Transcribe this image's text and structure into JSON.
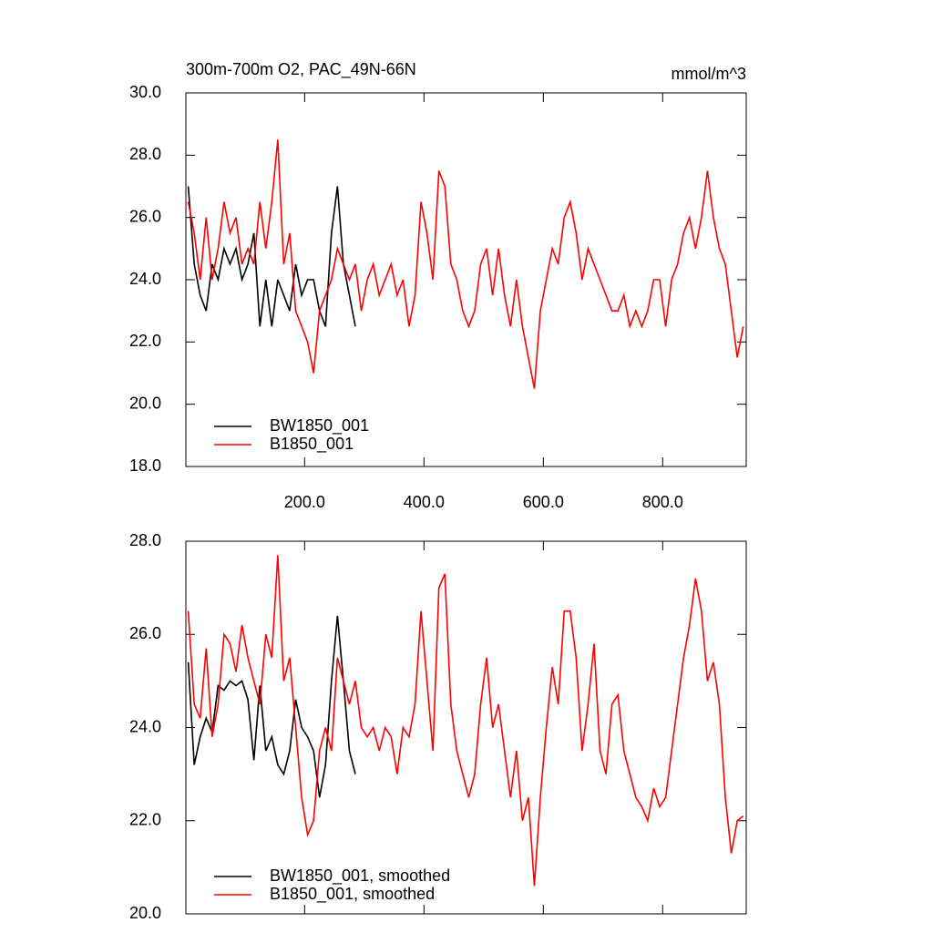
{
  "chart_data": [
    {
      "type": "line",
      "title": "300m-700m O2, PAC_49N-66N",
      "subtitle": "mmol/m^3",
      "x": [
        5,
        15,
        25,
        35,
        45,
        55,
        65,
        75,
        85,
        95,
        105,
        115,
        125,
        135,
        145,
        155,
        165,
        175,
        185,
        195,
        205,
        215,
        225,
        235,
        245,
        255,
        265,
        275,
        285,
        295,
        305,
        315,
        325,
        335,
        345,
        355,
        365,
        375,
        385,
        395,
        405,
        415,
        425,
        435,
        445,
        455,
        465,
        475,
        485,
        495,
        505,
        515,
        525,
        535,
        545,
        555,
        565,
        575,
        585,
        595,
        605,
        615,
        625,
        635,
        645,
        655,
        665,
        675,
        685,
        695,
        705,
        715,
        725,
        735,
        745,
        755,
        765,
        775,
        785,
        795,
        805,
        815,
        825,
        835,
        845,
        855,
        865,
        875,
        885,
        895,
        905,
        915,
        925,
        935
      ],
      "series": [
        {
          "name": "BW1850_001",
          "color": "#000000",
          "values": [
            27,
            24.5,
            23.5,
            23,
            24.5,
            24,
            25,
            24.5,
            25,
            24,
            24.5,
            25.5,
            22.5,
            24,
            22.5,
            24,
            23.5,
            23,
            24.5,
            23.5,
            24,
            24,
            23,
            22.5,
            25.5,
            27,
            24.5,
            23.5,
            22.5,
            null,
            null,
            null,
            null,
            null,
            null,
            null,
            null,
            null,
            null,
            null,
            null,
            null,
            null,
            null,
            null,
            null,
            null,
            null,
            null,
            null,
            null,
            null,
            null,
            null,
            null,
            null,
            null,
            null,
            null,
            null,
            null,
            null,
            null,
            null,
            null,
            null,
            null,
            null,
            null,
            null,
            null,
            null,
            null,
            null,
            null,
            null,
            null,
            null,
            null,
            null,
            null,
            null,
            null,
            null,
            null,
            null,
            null,
            null,
            null,
            null,
            null,
            null,
            null,
            null
          ]
        },
        {
          "name": "B1850_001",
          "color": "#ff0000",
          "values": [
            26.5,
            25.5,
            24,
            26,
            24,
            25,
            26.5,
            25.5,
            26,
            24.5,
            25,
            24.5,
            26.5,
            25,
            26.5,
            28.5,
            24.5,
            25.5,
            23,
            22.5,
            22,
            21,
            23,
            23.5,
            24,
            25,
            24.5,
            24,
            24.5,
            23,
            24,
            24.5,
            23.5,
            24,
            24.5,
            23.5,
            24,
            22.5,
            23.5,
            26.5,
            25.5,
            24,
            27.5,
            27,
            24.5,
            24,
            23,
            22.5,
            23,
            24.5,
            25,
            23.5,
            25,
            23.5,
            22.5,
            24,
            22.5,
            21.5,
            20.5,
            23,
            24,
            25,
            24.5,
            26,
            26.5,
            25.5,
            24,
            25,
            24.5,
            24,
            23.5,
            23,
            23,
            23.5,
            22.5,
            23,
            22.5,
            23,
            24,
            24,
            22.5,
            24,
            24.5,
            25.5,
            26,
            25,
            26,
            27.5,
            26,
            25,
            24.5,
            23,
            21.5,
            22.5
          ]
        }
      ],
      "xlim": [
        1,
        940
      ],
      "xticks": [
        {
          "value": 200,
          "label": "200.0"
        },
        {
          "value": 400,
          "label": "400.0"
        },
        {
          "value": 600,
          "label": "600.0"
        },
        {
          "value": 800,
          "label": "800.0"
        }
      ],
      "ylim": [
        18,
        30
      ],
      "yticks": [
        {
          "value": 18,
          "label": "18.0"
        },
        {
          "value": 20,
          "label": "20.0"
        },
        {
          "value": 22,
          "label": "22.0"
        },
        {
          "value": 24,
          "label": "24.0"
        },
        {
          "value": 26,
          "label": "26.0"
        },
        {
          "value": 28,
          "label": "28.0"
        },
        {
          "value": 30,
          "label": "30.0"
        }
      ]
    },
    {
      "type": "line",
      "x": [
        5,
        15,
        25,
        35,
        45,
        55,
        65,
        75,
        85,
        95,
        105,
        115,
        125,
        135,
        145,
        155,
        165,
        175,
        185,
        195,
        205,
        215,
        225,
        235,
        245,
        255,
        265,
        275,
        285,
        295,
        305,
        315,
        325,
        335,
        345,
        355,
        365,
        375,
        385,
        395,
        405,
        415,
        425,
        435,
        445,
        455,
        465,
        475,
        485,
        495,
        505,
        515,
        525,
        535,
        545,
        555,
        565,
        575,
        585,
        595,
        605,
        615,
        625,
        635,
        645,
        655,
        665,
        675,
        685,
        695,
        705,
        715,
        725,
        735,
        745,
        755,
        765,
        775,
        785,
        795,
        805,
        815,
        825,
        835,
        845,
        855,
        865,
        875,
        885,
        895,
        905,
        915,
        925,
        935
      ],
      "series": [
        {
          "name": "BW1850_001, smoothed",
          "color": "#000000",
          "values": [
            25.4,
            23.2,
            23.8,
            24.2,
            23.9,
            24.9,
            24.8,
            25,
            24.9,
            25,
            24.6,
            23.3,
            24.9,
            23.5,
            23.8,
            23.2,
            23,
            23.5,
            24.6,
            24,
            23.8,
            23.5,
            22.5,
            23.2,
            25,
            26.4,
            25,
            23.5,
            23,
            null,
            null,
            null,
            null,
            null,
            null,
            null,
            null,
            null,
            null,
            null,
            null,
            null,
            null,
            null,
            null,
            null,
            null,
            null,
            null,
            null,
            null,
            null,
            null,
            null,
            null,
            null,
            null,
            null,
            null,
            null,
            null,
            null,
            null,
            null,
            null,
            null,
            null,
            null,
            null,
            null,
            null,
            null,
            null,
            null,
            null,
            null,
            null,
            null,
            null,
            null,
            null,
            null,
            null,
            null,
            null,
            null,
            null,
            null,
            null,
            null,
            null,
            null,
            null,
            null
          ]
        },
        {
          "name": "B1850_001, smoothed",
          "color": "#ff0000",
          "values": [
            26.5,
            24.5,
            24.2,
            25.7,
            23.8,
            24.5,
            26,
            25.8,
            25.2,
            26.2,
            25.5,
            25,
            24.5,
            26,
            25.5,
            27.7,
            25,
            25.5,
            24,
            22.5,
            21.7,
            22,
            23.5,
            24,
            23.5,
            25.5,
            25,
            24.5,
            25,
            24,
            23.8,
            24,
            23.5,
            24,
            23.8,
            23,
            24,
            23.8,
            24.5,
            26.5,
            25,
            23.5,
            27,
            27.3,
            24.5,
            23.5,
            23,
            22.5,
            23,
            24.5,
            25.5,
            24,
            24.5,
            23.5,
            22.5,
            23.5,
            22,
            22.5,
            20.6,
            22.5,
            24,
            25.3,
            24.5,
            26.5,
            26.5,
            25.5,
            23.5,
            24.5,
            25.8,
            23.5,
            23,
            24.5,
            24.7,
            23.5,
            23,
            22.5,
            22.3,
            22,
            22.7,
            22.3,
            22.5,
            23.5,
            24.5,
            25.5,
            26.2,
            27.2,
            26.5,
            25,
            25.4,
            24.5,
            22.5,
            21.3,
            22,
            22.1
          ]
        }
      ],
      "xlim": [
        1,
        940
      ],
      "ylim": [
        20,
        28
      ],
      "yticks": [
        {
          "value": 20,
          "label": "20.0"
        },
        {
          "value": 22,
          "label": "22.0"
        },
        {
          "value": 24,
          "label": "24.0"
        },
        {
          "value": 26,
          "label": "26.0"
        },
        {
          "value": 28,
          "label": "28.0"
        }
      ]
    }
  ]
}
